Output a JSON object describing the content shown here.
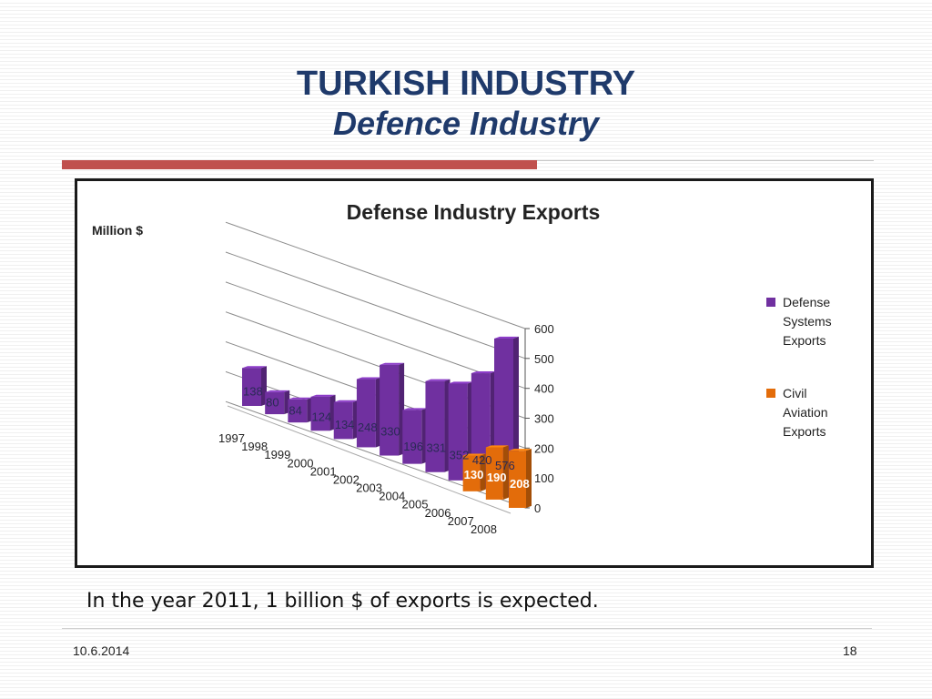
{
  "slide": {
    "title_line1": "TURKISH INDUSTRY",
    "title_line2": "Defence Industry",
    "caption": "In the year 2011, 1 billion $ of exports is expected.",
    "date": "10.6.2014",
    "page_number": "18"
  },
  "colors": {
    "title": "#1f3a6b",
    "accent_rule": "#c0504d",
    "defense_series": "#7030a0",
    "civil_series": "#e36c0a"
  },
  "chart_data": {
    "type": "bar",
    "title": "Defense Industry Exports",
    "ylabel": "Million $",
    "xlabel": "",
    "categories": [
      "1997",
      "1998",
      "1999",
      "2000",
      "2001",
      "2002",
      "2003",
      "2004",
      "2005",
      "2006",
      "2007",
      "2008"
    ],
    "series": [
      {
        "name": "Defense Systems Exports",
        "values": [
          138,
          80,
          84,
          124,
          134,
          248,
          330,
          196,
          331,
          352,
          420,
          576
        ]
      },
      {
        "name": "Civil Aviation Exports",
        "values": [
          null,
          null,
          null,
          null,
          null,
          null,
          null,
          null,
          null,
          130,
          190,
          208
        ]
      }
    ],
    "ylim": [
      0,
      600
    ],
    "yticks": [
      0,
      100,
      200,
      300,
      400,
      500,
      600
    ],
    "legend": "right",
    "grid": true,
    "style": "3d-perspective"
  }
}
